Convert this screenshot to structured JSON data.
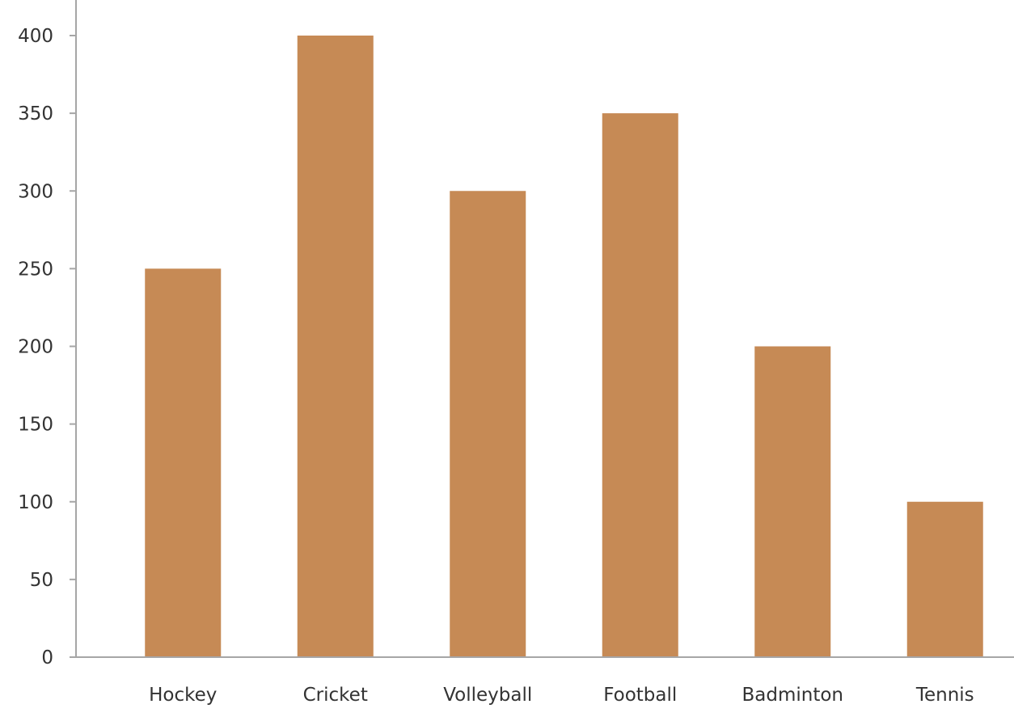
{
  "chart_data": {
    "type": "bar",
    "categories": [
      "Hockey",
      "Cricket",
      "Volleyball",
      "Football",
      "Badminton",
      "Tennis"
    ],
    "values": [
      250,
      400,
      300,
      350,
      200,
      100
    ],
    "yticks": [
      0,
      50,
      100,
      150,
      200,
      250,
      300,
      350,
      400
    ],
    "ylim": [
      0,
      400
    ],
    "title": "",
    "xlabel": "",
    "ylabel": "",
    "grid": false,
    "legend": "none",
    "bar_color": "#C68A55",
    "axis_color": "#A6A6A6"
  }
}
